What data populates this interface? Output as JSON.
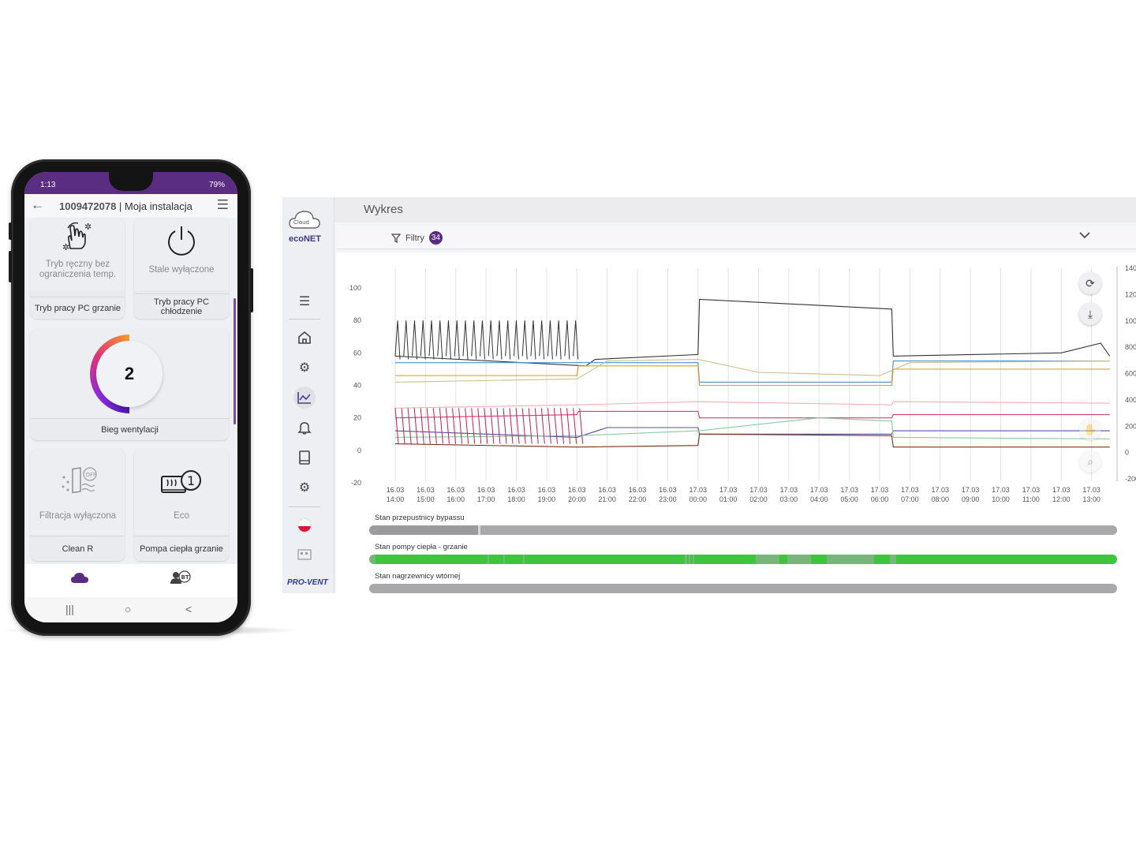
{
  "phone": {
    "status": {
      "time": "1:13",
      "right": "79%"
    },
    "header": {
      "back_icon": "arrow-left-icon",
      "id": "1009472078",
      "separator": " | ",
      "name": "Moja instalacja",
      "menu_icon": "hamburger-icon"
    },
    "tiles": {
      "manual": {
        "state": "Tryb ręczny bez ograniczenia temp.",
        "caption": "Tryb pracy PC grzanie",
        "icon": "hand-touch-icon"
      },
      "off": {
        "state": "Stale wyłączone",
        "caption": "Tryb pracy PC chłodzenie",
        "icon": "power-icon"
      },
      "fan": {
        "value": "2",
        "caption": "Bieg wentylacji",
        "icon": "gauge-ring"
      },
      "filter": {
        "state": "Filtracja wyłączona",
        "caption": "Clean R",
        "icon": "filter-off-icon"
      },
      "eco": {
        "state": "Eco",
        "caption": "Pompa ciepła grzanie",
        "icon": "heater-eco-icon"
      }
    },
    "bottom_nav": {
      "cloud_icon": "cloud-icon",
      "bt_icon": "user-bluetooth-icon"
    },
    "system_nav": {
      "recents": "|||",
      "home": "○",
      "back": "<"
    }
  },
  "desktop": {
    "logo": {
      "cloud_text": "Cloud",
      "brand": "ecoNET"
    },
    "page_title": "Wykres",
    "filter": {
      "label": "Filtry",
      "count": "34",
      "icon": "funnel-icon",
      "chevron": "chevron-down-icon"
    },
    "sidebar": [
      "list-icon",
      "home-icon",
      "gears-icon",
      "chart-icon",
      "bell-icon",
      "book-icon",
      "settings-icon",
      "flag-pl-icon",
      "building-icon"
    ],
    "footer_brand": "PRO-VENT",
    "chart_buttons": [
      "refresh-icon",
      "download-icon",
      "pan-icon",
      "zoom-icon"
    ],
    "state_bars": [
      {
        "label": "Stan przepustnicy bypassu"
      },
      {
        "label": "Stan pompy ciepła - grzanie"
      },
      {
        "label": "Stan nagrzewnicy wtórnej"
      }
    ]
  },
  "colors": {
    "brand_purple": "#5a2c82",
    "state_on": "#3ec43e",
    "state_off": "#a9a9ab"
  },
  "chart_data": {
    "type": "line",
    "x_ticks": [
      [
        "16.03",
        "14:00"
      ],
      [
        "16.03",
        "15:00"
      ],
      [
        "16.03",
        "16:00"
      ],
      [
        "16.03",
        "17:00"
      ],
      [
        "16.03",
        "18:00"
      ],
      [
        "16.03",
        "19:00"
      ],
      [
        "16.03",
        "20:00"
      ],
      [
        "16.03",
        "21:00"
      ],
      [
        "16.03",
        "22:00"
      ],
      [
        "16.03",
        "23:00"
      ],
      [
        "17.03",
        "00:00"
      ],
      [
        "17.03",
        "01:00"
      ],
      [
        "17.03",
        "02:00"
      ],
      [
        "17.03",
        "03:00"
      ],
      [
        "17.03",
        "04:00"
      ],
      [
        "17.03",
        "05:00"
      ],
      [
        "17.03",
        "06:00"
      ],
      [
        "17.03",
        "07:00"
      ],
      [
        "17.03",
        "08:00"
      ],
      [
        "17.03",
        "09:00"
      ],
      [
        "17.03",
        "10:00"
      ],
      [
        "17.03",
        "11:00"
      ],
      [
        "17.03",
        "12:00"
      ],
      [
        "17.03",
        "13:00"
      ]
    ],
    "y_left": {
      "ticks": [
        100,
        80,
        60,
        40,
        20,
        0,
        -20
      ],
      "ylim": [
        -20,
        100
      ]
    },
    "y_right": {
      "ticks": [
        1400,
        1200,
        1000,
        800,
        600,
        400,
        200,
        0,
        -200
      ],
      "ylim": [
        -200,
        1400
      ]
    },
    "grid": "vertical",
    "series": [
      {
        "color": "#333333",
        "points": [
          [
            0,
            58
          ],
          [
            6.3,
            52
          ],
          [
            6.6,
            56
          ],
          [
            10,
            59
          ],
          [
            10.05,
            93
          ],
          [
            16.4,
            87
          ],
          [
            16.45,
            58
          ],
          [
            22,
            60
          ],
          [
            23.3,
            66
          ],
          [
            23.6,
            58
          ]
        ]
      },
      {
        "color": "#4a8fd0",
        "points": [
          [
            0,
            54
          ],
          [
            10,
            54
          ],
          [
            10.05,
            42
          ],
          [
            16.4,
            42
          ],
          [
            16.45,
            55
          ],
          [
            23.6,
            55
          ]
        ]
      },
      {
        "color": "#e0a020",
        "points": [
          [
            0,
            46
          ],
          [
            6,
            46
          ],
          [
            6.05,
            52
          ],
          [
            10,
            52
          ],
          [
            10.05,
            40
          ],
          [
            16.4,
            40
          ],
          [
            16.45,
            50
          ],
          [
            23.6,
            50
          ]
        ]
      },
      {
        "color": "#c8c090",
        "points": [
          [
            0,
            42
          ],
          [
            6,
            44
          ],
          [
            7,
            55
          ],
          [
            10,
            56
          ],
          [
            12,
            48
          ],
          [
            16,
            46
          ],
          [
            17,
            54
          ],
          [
            23.6,
            55
          ]
        ]
      },
      {
        "color": "#d04070",
        "points": [
          [
            0,
            20
          ],
          [
            6,
            22
          ],
          [
            6.05,
            24
          ],
          [
            10,
            24
          ],
          [
            10.05,
            20
          ],
          [
            16.4,
            20
          ],
          [
            16.45,
            22
          ],
          [
            23.6,
            22
          ]
        ]
      },
      {
        "color": "#5050a0",
        "points": [
          [
            0,
            12
          ],
          [
            6,
            8
          ],
          [
            7,
            14
          ],
          [
            10,
            14
          ],
          [
            10.05,
            10
          ],
          [
            16.4,
            10
          ],
          [
            16.45,
            12
          ],
          [
            23.6,
            12
          ]
        ]
      },
      {
        "color": "#7a3020",
        "points": [
          [
            0,
            4
          ],
          [
            6,
            2
          ],
          [
            10,
            3
          ],
          [
            10.05,
            10
          ],
          [
            16.4,
            9
          ],
          [
            16.45,
            2
          ],
          [
            23.6,
            2
          ]
        ]
      },
      {
        "color": "#90c8a0",
        "points": [
          [
            0,
            8
          ],
          [
            6,
            9
          ],
          [
            10,
            12
          ],
          [
            14,
            20
          ],
          [
            16.4,
            18
          ],
          [
            16.45,
            8
          ],
          [
            23.6,
            7
          ]
        ]
      },
      {
        "color": "#f4b0b0",
        "points": [
          [
            0,
            26
          ],
          [
            6,
            28
          ],
          [
            10,
            30
          ],
          [
            16.4,
            28
          ],
          [
            16.45,
            30
          ],
          [
            23.6,
            29
          ]
        ]
      }
    ]
  }
}
